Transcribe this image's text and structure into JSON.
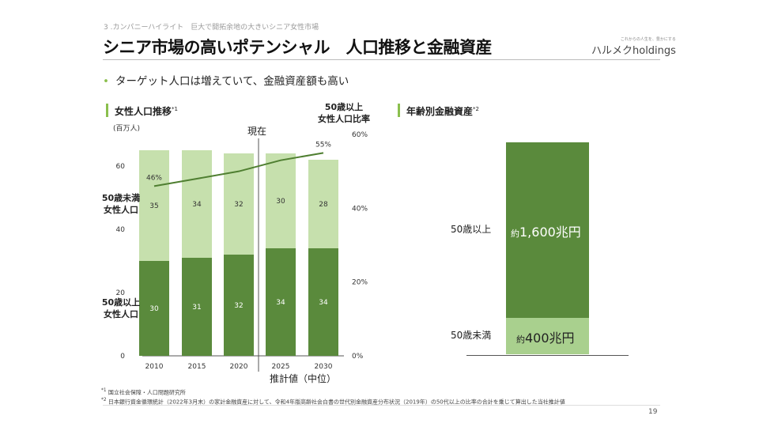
{
  "header": {
    "breadcrumb": "3 .カンパニーハイライト　巨大で開拓余地の大きいシニア女性市場",
    "title": "シニア市場の高いポテンシャル　人口推移と金融資産",
    "logo_tagline": "これからの人生を、豊かにする",
    "logo_name": "ハルメクholdings"
  },
  "bullet": "ターゲット人口は増えていて、金融資産額も高い",
  "chart_data": [
    {
      "type": "bar",
      "title": "女性人口推移",
      "title_note": "*1",
      "ylabel": "(百万人)",
      "ylabel_right": "50歳以上\n女性人口比率",
      "ylabel_right_lines": [
        "50歳以上",
        "女性人口比率"
      ],
      "categories": [
        "2010",
        "2015",
        "2020",
        "2025",
        "2030"
      ],
      "yticks": [
        "0",
        "20",
        "40",
        "60"
      ],
      "yticks_right": [
        "0%",
        "20%",
        "40%",
        "60%"
      ],
      "ylim": [
        0,
        60
      ],
      "ylim_right": [
        0,
        60
      ],
      "stacked": true,
      "series": [
        {
          "name": "50歳以上女性人口",
          "label_lines": [
            "50歳以上",
            "女性人口"
          ],
          "values": [
            30,
            31,
            32,
            34,
            34
          ],
          "color": "#5a8a3c"
        },
        {
          "name": "50歳未満女性人口",
          "label_lines": [
            "50歳未満",
            "女性人口"
          ],
          "values": [
            35,
            34,
            32,
            30,
            28
          ],
          "color": "#c6e0ad"
        }
      ],
      "line": {
        "name": "50歳以上女性人口比率",
        "values": [
          46,
          48,
          50,
          53,
          55
        ],
        "labels": [
          "46%",
          "",
          "",
          "",
          "55%"
        ],
        "color": "#4f7f31"
      },
      "annotations": {
        "now": "現在",
        "forecast": "推計値（中位）"
      }
    },
    {
      "type": "bar",
      "title": "年齢別金融資産",
      "title_note": "*2",
      "stacked": true,
      "categories": [
        "金融資産"
      ],
      "series": [
        {
          "name": "50歳未満",
          "value_label_prefix": "約",
          "value_label": "400兆円",
          "values": [
            400
          ],
          "color": "#a9d08e"
        },
        {
          "name": "50歳以上",
          "value_label_prefix": "約",
          "value_label": "1,600兆円",
          "values": [
            1600
          ],
          "color": "#5a8a3c"
        }
      ]
    }
  ],
  "footnotes": [
    {
      "mark": "*1",
      "text": "国立社会保障・人口問題研究所"
    },
    {
      "mark": "*2",
      "text": "日本銀行資金循環統計（2022年3月末）の家計金融資産に対して、令和4年版高齢社会白書の世代別金融資産分布状況（2019年）の50代以上の比率の合計を乗じて算出した当社推計値"
    }
  ],
  "page_number": "19"
}
